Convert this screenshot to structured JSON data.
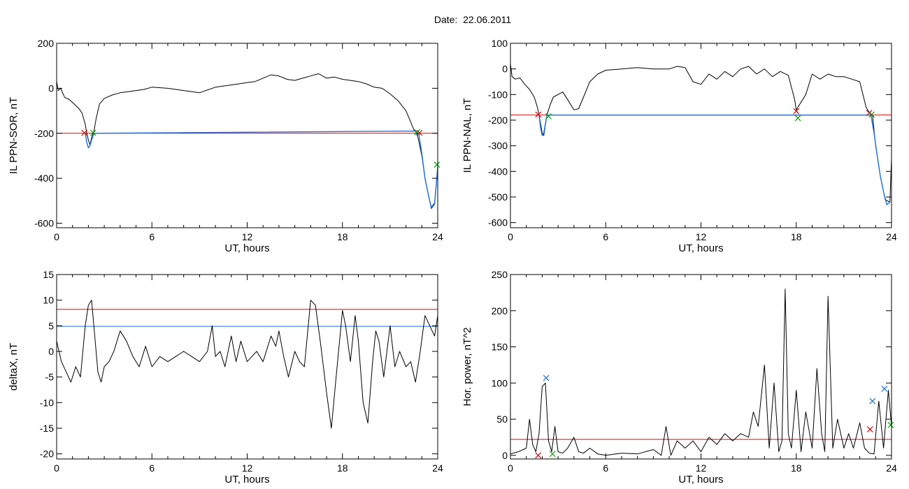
{
  "page": {
    "title": "Date:  22.06.2011"
  },
  "chart_data": [
    {
      "type": "line",
      "ylabel": "IL PPN-SOR, nT",
      "xlabel": "UT, hours",
      "xlim": [
        0,
        24
      ],
      "ylim": [
        -620,
        200
      ],
      "xticks": [
        0,
        6,
        12,
        18,
        24
      ],
      "yticks": [
        -600,
        -400,
        -200,
        0,
        200
      ],
      "threshold_lines": [
        {
          "y": -200,
          "color": "#e00000"
        }
      ],
      "series": [
        {
          "color": "#000000",
          "x": [
            0,
            0.1,
            0.25,
            0.5,
            0.8,
            1.1,
            1.4,
            1.6,
            1.8,
            1.9,
            2.0,
            2.1,
            2.2,
            2.35,
            2.5,
            2.7,
            3.0,
            3.5,
            4.0,
            4.5,
            5.0,
            5.5,
            6.0,
            7.0,
            8.0,
            9.0,
            10.0,
            11.0,
            12.0,
            12.5,
            13.0,
            13.5,
            14.0,
            14.5,
            15.0,
            15.5,
            16.0,
            16.5,
            17.0,
            17.5,
            18.0,
            18.5,
            19.0,
            19.5,
            20.0,
            20.5,
            21.0,
            21.5,
            22.0,
            22.3,
            22.5,
            22.7,
            23.0,
            23.2,
            23.4,
            23.6,
            23.8,
            24.0
          ],
          "y": [
            30,
            -10,
            0,
            -40,
            -50,
            -70,
            -90,
            -110,
            -160,
            -200,
            -230,
            -250,
            -220,
            -190,
            -130,
            -70,
            -45,
            -30,
            -20,
            -15,
            -10,
            -5,
            5,
            0,
            -10,
            -20,
            5,
            15,
            25,
            30,
            45,
            60,
            55,
            40,
            35,
            45,
            55,
            65,
            45,
            50,
            40,
            35,
            30,
            20,
            5,
            0,
            -25,
            -55,
            -100,
            -150,
            -185,
            -200,
            -300,
            -400,
            -470,
            -530,
            -510,
            -350
          ]
        },
        {
          "color": "#1e6fe0",
          "x": [
            1.8,
            1.9,
            2.0,
            2.1,
            2.2,
            2.3,
            2.35,
            22.6,
            22.7,
            22.8,
            23.0,
            23.2,
            23.4,
            23.6,
            23.8,
            24.0
          ],
          "y": [
            -200,
            -240,
            -265,
            -255,
            -230,
            -210,
            -200,
            -190,
            -210,
            -200,
            -290,
            -400,
            -470,
            -535,
            -515,
            -350
          ]
        }
      ],
      "markers": [
        {
          "x": 1.75,
          "y": -198,
          "color": "#e00000"
        },
        {
          "x": 2.3,
          "y": -198,
          "color": "#00a000"
        },
        {
          "x": 22.7,
          "y": -195,
          "color": "#00a000"
        },
        {
          "x": 22.85,
          "y": -198,
          "color": "#e00000"
        },
        {
          "x": 23.95,
          "y": -340,
          "color": "#00a000"
        }
      ]
    },
    {
      "type": "line",
      "ylabel": "IL PPN-NAL, nT",
      "xlabel": "UT, hours",
      "xlim": [
        0,
        24
      ],
      "ylim": [
        -620,
        100
      ],
      "xticks": [
        0,
        6,
        12,
        18,
        24
      ],
      "yticks": [
        -600,
        -500,
        -400,
        -300,
        -200,
        -100,
        0,
        100
      ],
      "threshold_lines": [
        {
          "y": -180,
          "color": "#e00000"
        }
      ],
      "series": [
        {
          "color": "#000000",
          "x": [
            0,
            0.1,
            0.3,
            0.6,
            0.9,
            1.2,
            1.5,
            1.7,
            1.8,
            2.0,
            2.1,
            2.3,
            2.5,
            2.7,
            3.0,
            3.3,
            3.6,
            4.0,
            4.3,
            4.6,
            5.0,
            5.5,
            6.0,
            7.0,
            8.0,
            9.0,
            10.0,
            10.5,
            11.0,
            11.5,
            12.0,
            12.5,
            13.0,
            13.5,
            14.0,
            14.5,
            15.0,
            15.5,
            16.0,
            16.5,
            17.0,
            17.5,
            17.9,
            18.0,
            18.1,
            18.3,
            18.6,
            19.0,
            19.5,
            20.0,
            20.5,
            21.0,
            21.5,
            22.0,
            22.4,
            22.6,
            22.8,
            23.0,
            23.3,
            23.6,
            23.9,
            24.0
          ],
          "y": [
            20,
            -30,
            -40,
            -35,
            -60,
            -80,
            -110,
            -150,
            -180,
            -250,
            -260,
            -180,
            -140,
            -110,
            -100,
            -90,
            -120,
            -160,
            -155,
            -110,
            -50,
            -20,
            -5,
            0,
            5,
            0,
            0,
            10,
            5,
            -50,
            -60,
            -20,
            -40,
            -10,
            -30,
            0,
            10,
            -20,
            0,
            -30,
            -10,
            -25,
            -120,
            -160,
            -150,
            -130,
            -100,
            -20,
            -40,
            -20,
            -30,
            -30,
            -40,
            -50,
            -150,
            -170,
            -180,
            -300,
            -420,
            -510,
            -520,
            -350
          ]
        },
        {
          "color": "#1e6fe0",
          "x": [
            1.8,
            1.9,
            2.0,
            2.1,
            2.2,
            2.3,
            22.7,
            22.9,
            23.1,
            23.3,
            23.5,
            23.7,
            23.9
          ],
          "y": [
            -180,
            -230,
            -260,
            -250,
            -215,
            -180,
            -180,
            -250,
            -340,
            -420,
            -480,
            -530,
            -520
          ]
        }
      ],
      "markers": [
        {
          "x": 1.75,
          "y": -178,
          "color": "#e00000"
        },
        {
          "x": 2.4,
          "y": -185,
          "color": "#00a000"
        },
        {
          "x": 18.0,
          "y": -165,
          "color": "#e00000"
        },
        {
          "x": 18.1,
          "y": -192,
          "color": "#00a000"
        },
        {
          "x": 22.6,
          "y": -172,
          "color": "#e00000"
        },
        {
          "x": 22.75,
          "y": -178,
          "color": "#00a000"
        }
      ]
    },
    {
      "type": "line",
      "ylabel": "deltaX, nT",
      "xlabel": "UT, hours",
      "xlim": [
        0,
        24
      ],
      "ylim": [
        -21,
        15
      ],
      "xticks": [
        0,
        6,
        12,
        18,
        24
      ],
      "yticks": [
        -20,
        -15,
        -10,
        -5,
        0,
        5,
        10,
        15
      ],
      "threshold_lines": [
        {
          "y": 8.2,
          "color": "#e00000"
        },
        {
          "y": 4.9,
          "color": "#1e6fe0"
        }
      ],
      "series": [
        {
          "color": "#000000",
          "x": [
            0,
            0.3,
            0.6,
            0.9,
            1.2,
            1.5,
            1.8,
            2.0,
            2.2,
            2.4,
            2.6,
            2.8,
            3.0,
            3.3,
            3.6,
            4.0,
            4.4,
            4.8,
            5.2,
            5.6,
            6.0,
            6.5,
            7.0,
            7.5,
            8.0,
            8.5,
            9.0,
            9.5,
            9.8,
            10.0,
            10.3,
            10.6,
            11.0,
            11.3,
            11.6,
            12.0,
            12.3,
            12.6,
            13.0,
            13.5,
            13.8,
            14.0,
            14.3,
            14.6,
            15.0,
            15.3,
            15.6,
            16.0,
            16.3,
            16.6,
            17.0,
            17.3,
            17.6,
            18.0,
            18.2,
            18.5,
            18.8,
            19.0,
            19.3,
            19.6,
            19.9,
            20.1,
            20.3,
            20.6,
            21.0,
            21.3,
            21.6,
            22.0,
            22.3,
            22.6,
            22.9,
            23.2,
            23.5,
            23.8,
            24.0
          ],
          "y": [
            2,
            -2,
            -4,
            -6,
            -3,
            -5,
            5,
            9,
            10,
            3,
            -4,
            -6,
            -3,
            -2,
            0,
            4,
            2,
            -1,
            -3,
            1,
            -3,
            -1,
            -2,
            -1,
            0,
            -1,
            -2,
            0,
            5,
            -1,
            0,
            -3,
            3,
            -2,
            2,
            -2,
            -1,
            0,
            -2,
            3,
            1,
            4,
            -1,
            -5,
            0,
            -2,
            -3,
            10,
            9,
            2,
            -8,
            -15,
            -5,
            8,
            5,
            -2,
            7,
            2,
            -10,
            -14,
            -2,
            4,
            2,
            -5,
            5,
            -3,
            0,
            -3,
            -2,
            -6,
            0,
            7,
            5,
            3,
            7
          ]
        }
      ],
      "markers": []
    },
    {
      "type": "line",
      "ylabel": "Hor. power, nT^2",
      "xlabel": "UT, hours",
      "xlim": [
        0,
        24
      ],
      "ylim": [
        -5,
        250
      ],
      "xticks": [
        0,
        6,
        12,
        18,
        24
      ],
      "yticks": [
        0,
        50,
        100,
        150,
        200,
        250
      ],
      "threshold_lines": [
        {
          "y": 22,
          "color": "#e00000"
        }
      ],
      "series": [
        {
          "color": "#000000",
          "x": [
            0,
            0.5,
            1.0,
            1.2,
            1.4,
            1.6,
            1.8,
            2.0,
            2.2,
            2.4,
            2.6,
            2.8,
            3.0,
            3.3,
            3.6,
            4.0,
            4.3,
            4.6,
            5.0,
            5.5,
            6.0,
            7.0,
            8.0,
            9.0,
            9.5,
            9.8,
            10.1,
            10.5,
            11.0,
            11.5,
            12.0,
            12.5,
            13.0,
            13.5,
            14.0,
            14.5,
            15.0,
            15.3,
            15.6,
            16.0,
            16.3,
            16.6,
            16.9,
            17.1,
            17.3,
            17.5,
            17.7,
            18.0,
            18.3,
            18.6,
            19.0,
            19.3,
            19.6,
            19.8,
            20.0,
            20.3,
            20.6,
            21.0,
            21.3,
            21.6,
            22.0,
            22.3,
            22.6,
            22.9,
            23.2,
            23.5,
            23.8,
            24.0
          ],
          "y": [
            2,
            5,
            10,
            50,
            15,
            5,
            30,
            95,
            100,
            20,
            5,
            40,
            5,
            3,
            10,
            25,
            5,
            3,
            10,
            2,
            0,
            3,
            2,
            8,
            0,
            40,
            0,
            20,
            10,
            20,
            5,
            25,
            15,
            30,
            20,
            30,
            25,
            60,
            40,
            125,
            10,
            100,
            5,
            20,
            230,
            30,
            10,
            90,
            5,
            60,
            10,
            120,
            30,
            5,
            220,
            10,
            50,
            10,
            30,
            10,
            45,
            10,
            3,
            2,
            75,
            10,
            90,
            40
          ]
        }
      ],
      "markers": [
        {
          "x": 1.75,
          "y": 0,
          "color": "#e00000"
        },
        {
          "x": 2.25,
          "y": 107,
          "color": "#1e6fe0"
        },
        {
          "x": 2.65,
          "y": 2,
          "color": "#00a000"
        },
        {
          "x": 22.65,
          "y": 36,
          "color": "#e00000"
        },
        {
          "x": 22.8,
          "y": 75,
          "color": "#1e6fe0"
        },
        {
          "x": 23.55,
          "y": 92,
          "color": "#1e6fe0"
        },
        {
          "x": 23.95,
          "y": 42,
          "color": "#00a000"
        }
      ]
    }
  ]
}
